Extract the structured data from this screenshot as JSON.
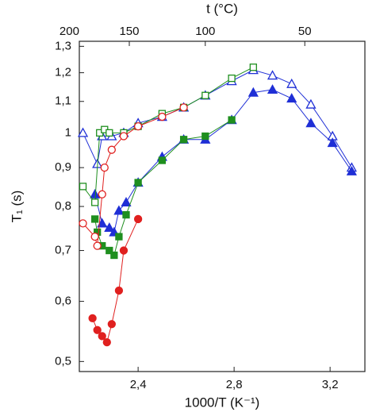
{
  "chart_data": {
    "type": "scatter",
    "xlabel": "1000/T (K⁻¹)",
    "ylabel": "T₁ (s)",
    "x2label": "t (°C)",
    "xlim": [
      2.155,
      3.345
    ],
    "ylim": [
      0.485,
      1.32
    ],
    "log_y": true,
    "xticks": [
      {
        "value": 2.4,
        "label": "2,4"
      },
      {
        "value": 2.8,
        "label": "2,8"
      },
      {
        "value": 3.2,
        "label": "3,2"
      }
    ],
    "yticks": [
      {
        "value": 0.5,
        "label": "0,5"
      },
      {
        "value": 0.6,
        "label": "0,6"
      },
      {
        "value": 0.7,
        "label": "0,7"
      },
      {
        "value": 0.8,
        "label": "0,8"
      },
      {
        "value": 0.9,
        "label": "0,9"
      },
      1,
      {
        "value": 1.1,
        "label": "1,1"
      },
      {
        "value": 1.2,
        "label": "1,2"
      },
      {
        "value": 1.3,
        "label": "1,3"
      }
    ],
    "x2ticks": [
      200,
      150,
      100,
      50
    ],
    "series": [
      {
        "color": "#1f2fd6",
        "marker": "triangle",
        "filled": false,
        "x": [
          2.17,
          2.23,
          2.25,
          2.29,
          2.34,
          2.4,
          2.5,
          2.59,
          2.68,
          2.79,
          2.88,
          2.96,
          3.04,
          3.12,
          3.21,
          3.29
        ],
        "values": [
          1.0,
          0.91,
          0.99,
          0.99,
          1.0,
          1.03,
          1.05,
          1.08,
          1.12,
          1.17,
          1.21,
          1.19,
          1.16,
          1.09,
          0.99,
          0.9
        ]
      },
      {
        "color": "#1f2fd6",
        "marker": "triangle",
        "filled": true,
        "x": [
          2.22,
          2.25,
          2.28,
          2.3,
          2.32,
          2.35,
          2.4,
          2.5,
          2.59,
          2.68,
          2.79,
          2.88,
          2.96,
          3.04,
          3.12,
          3.21,
          3.29
        ],
        "values": [
          0.83,
          0.76,
          0.75,
          0.74,
          0.79,
          0.81,
          0.86,
          0.93,
          0.98,
          0.98,
          1.04,
          1.13,
          1.14,
          1.11,
          1.03,
          0.97,
          0.89
        ]
      },
      {
        "color": "#1f8f1f",
        "marker": "square",
        "filled": false,
        "x": [
          2.17,
          2.22,
          2.24,
          2.26,
          2.28,
          2.34,
          2.4,
          2.5,
          2.59,
          2.68,
          2.79,
          2.88
        ],
        "values": [
          0.85,
          0.81,
          1.0,
          1.01,
          1.0,
          1.0,
          1.02,
          1.06,
          1.08,
          1.12,
          1.18,
          1.22
        ]
      },
      {
        "color": "#1f8f1f",
        "marker": "square",
        "filled": true,
        "x": [
          2.22,
          2.23,
          2.25,
          2.28,
          2.3,
          2.32,
          2.35,
          2.4,
          2.5,
          2.59,
          2.68,
          2.79
        ],
        "values": [
          0.77,
          0.74,
          0.71,
          0.7,
          0.69,
          0.73,
          0.78,
          0.86,
          0.92,
          0.98,
          0.99,
          1.04
        ]
      },
      {
        "color": "#e0201f",
        "marker": "circle",
        "filled": false,
        "x": [
          2.17,
          2.22,
          2.23,
          2.25,
          2.26,
          2.29,
          2.34,
          2.4,
          2.5,
          2.59
        ],
        "values": [
          0.76,
          0.73,
          0.71,
          0.83,
          0.9,
          0.95,
          0.99,
          1.02,
          1.05,
          1.08
        ]
      },
      {
        "color": "#e0201f",
        "marker": "circle",
        "filled": true,
        "x": [
          2.21,
          2.23,
          2.25,
          2.27,
          2.29,
          2.32,
          2.34,
          2.4
        ],
        "values": [
          0.57,
          0.55,
          0.54,
          0.53,
          0.56,
          0.62,
          0.7,
          0.77
        ]
      }
    ]
  }
}
